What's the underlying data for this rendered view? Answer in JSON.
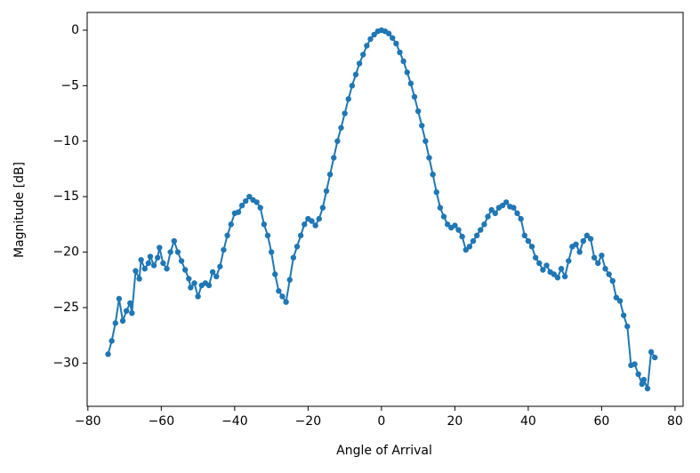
{
  "chart_data": {
    "type": "line",
    "xlabel": "Angle of Arrival",
    "ylabel": "Magnitude [dB]",
    "xlim": [
      -80.2,
      82.2
    ],
    "ylim": [
      -33.9,
      1.6
    ],
    "xticks": [
      {
        "value": -80,
        "label": "−80"
      },
      {
        "value": -60,
        "label": "−60"
      },
      {
        "value": -40,
        "label": "−40"
      },
      {
        "value": -20,
        "label": "−20"
      },
      0,
      20,
      40,
      60,
      80
    ],
    "yticks": [
      0,
      {
        "value": -5,
        "label": "−5"
      },
      {
        "value": -10,
        "label": "−10"
      },
      {
        "value": -15,
        "label": "−15"
      },
      {
        "value": -20,
        "label": "−20"
      },
      {
        "value": -25,
        "label": "−25"
      },
      {
        "value": -30,
        "label": "−30"
      }
    ],
    "grid": false,
    "markers": true,
    "series": [
      {
        "color": "#1f77b4",
        "x": [
          -74.5,
          -73.5,
          -72.5,
          -71.5,
          -70.5,
          -69.5,
          -68.5,
          -68,
          -67,
          -66,
          -65.5,
          -64.5,
          -63.5,
          -63,
          -62,
          -61,
          -60.5,
          -59.5,
          -58.5,
          -57.5,
          -56.5,
          -55.5,
          -54.5,
          -53.5,
          -52.5,
          -52,
          -51,
          -50,
          -49,
          -48,
          -47,
          -46,
          -45,
          -44,
          -43,
          -42,
          -41,
          -40,
          -39,
          -38,
          -37,
          -36,
          -35,
          -34,
          -33,
          -32,
          -31,
          -30,
          -29,
          -28,
          -27,
          -26,
          -25,
          -24,
          -23,
          -22,
          -21,
          -20,
          -19,
          -18,
          -17,
          -16,
          -15,
          -14,
          -13,
          -12,
          -11,
          -10,
          -9,
          -8,
          -7,
          -6,
          -5,
          -4,
          -3,
          -2,
          -1,
          0,
          1,
          2,
          3,
          4,
          5,
          6,
          7,
          8,
          9,
          10,
          11,
          12,
          13,
          14,
          15,
          16,
          17,
          18,
          19,
          20,
          21,
          22,
          23,
          24,
          25,
          26,
          27,
          28,
          29,
          30,
          31,
          32,
          33,
          34,
          35,
          36,
          37,
          38,
          39,
          40,
          41,
          42,
          43,
          44,
          45,
          46,
          47,
          48,
          49,
          50,
          51,
          52,
          53,
          54,
          55,
          56,
          57,
          58,
          59,
          60,
          61,
          62,
          63,
          64,
          65,
          66,
          67,
          68,
          69,
          70,
          71,
          71.5,
          72.5,
          73.5,
          74.5
        ],
        "values": [
          -29.2,
          -28,
          -26.4,
          -24.2,
          -26.2,
          -25.3,
          -24.6,
          -25.5,
          -21.7,
          -22.4,
          -20.7,
          -21.5,
          -21,
          -20.4,
          -21.2,
          -20.5,
          -19.6,
          -21,
          -21.5,
          -20,
          -19,
          -20,
          -20.8,
          -21.6,
          -22.4,
          -23.2,
          -22.8,
          -24,
          -23,
          -22.8,
          -23,
          -21.8,
          -22.2,
          -21.3,
          -19.8,
          -18.5,
          -17.5,
          -16.5,
          -16.4,
          -15.8,
          -15.4,
          -15,
          -15.3,
          -15.5,
          -16,
          -17.5,
          -18.5,
          -20,
          -22,
          -23.5,
          -24,
          -24.5,
          -22.5,
          -20.5,
          -19.5,
          -18.5,
          -17.5,
          -17,
          -17.2,
          -17.6,
          -17,
          -16,
          -14.5,
          -13,
          -11.5,
          -10,
          -8.8,
          -7.5,
          -6.2,
          -5,
          -4,
          -3,
          -2.2,
          -1.4,
          -0.8,
          -0.4,
          -0.1,
          0,
          -0.1,
          -0.3,
          -0.7,
          -1.2,
          -2,
          -2.8,
          -3.8,
          -4.8,
          -6,
          -7.3,
          -8.6,
          -10,
          -11.5,
          -13,
          -14.6,
          -16,
          -16.8,
          -17.5,
          -17.8,
          -17.6,
          -18,
          -18.6,
          -19.8,
          -19.5,
          -19,
          -18.5,
          -18,
          -17.5,
          -16.8,
          -16.2,
          -16.5,
          -16,
          -15.8,
          -15.5,
          -15.9,
          -16,
          -16.5,
          -17,
          -18.5,
          -19,
          -19.5,
          -20.5,
          -21,
          -21.6,
          -21.2,
          -21.8,
          -22,
          -22.3,
          -21.5,
          -22.2,
          -20.8,
          -19.5,
          -19.3,
          -20,
          -19,
          -18.5,
          -18.8,
          -20.5,
          -21,
          -20.3,
          -21.5,
          -22,
          -22.6,
          -24.1,
          -24.4,
          -25.7,
          -26.7,
          -30.2,
          -30.1,
          -31,
          -31.9,
          -31.5,
          -32.3,
          -29,
          -29.5
        ]
      }
    ]
  }
}
